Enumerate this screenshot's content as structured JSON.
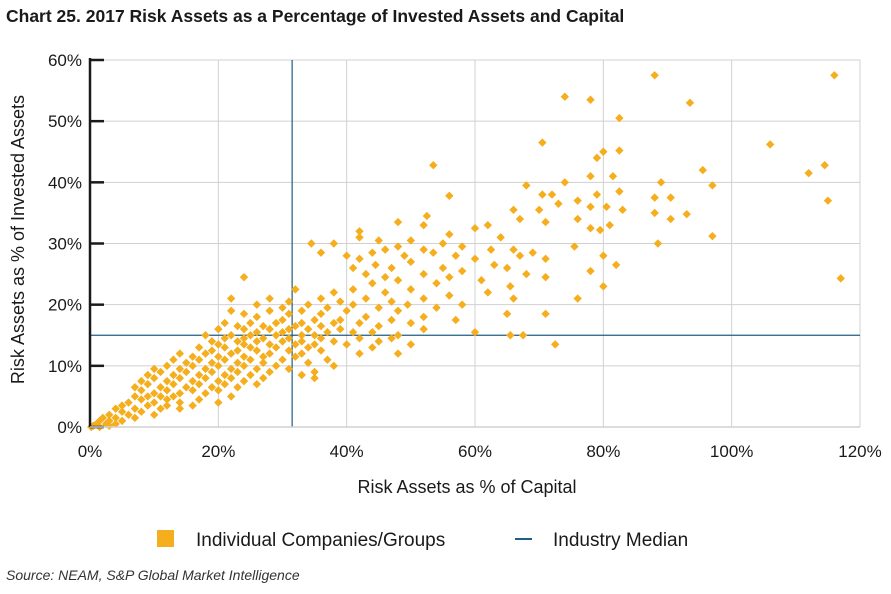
{
  "title": "Chart 25. 2017 Risk Assets as a Percentage of Invested Assets and Capital",
  "source": "Source: NEAM, S&P Global Market Intelligence",
  "colors": {
    "points": "#F5AE1E",
    "median": "#1F5E85",
    "grid": "#d0d0d0",
    "axis": "#1a1a1a"
  },
  "chart_data": {
    "type": "scatter",
    "xlabel": "Risk Assets as % of Capital",
    "ylabel": "Risk Assets as % of Invested Assets",
    "xlim": [
      0,
      120
    ],
    "ylim": [
      0,
      60
    ],
    "x_ticks": [
      "0%",
      "20%",
      "40%",
      "60%",
      "80%",
      "100%",
      "120%"
    ],
    "y_ticks": [
      "0%",
      "10%",
      "20%",
      "30%",
      "40%",
      "50%",
      "60%"
    ],
    "grid": true,
    "legend_position": "bottom",
    "legend": [
      {
        "label": "Individual Companies/Groups",
        "marker": "square"
      },
      {
        "label": "Industry Median",
        "marker": "line"
      }
    ],
    "median": {
      "x": 31.5,
      "y": 15
    },
    "series": [
      {
        "name": "Individual Companies/Groups",
        "points": [
          [
            116,
            57.5
          ],
          [
            88,
            57.5
          ],
          [
            74,
            54
          ],
          [
            78,
            53.5
          ],
          [
            93.5,
            53
          ],
          [
            82.5,
            50.5
          ],
          [
            70.5,
            46.5
          ],
          [
            106,
            46.2
          ],
          [
            80,
            45
          ],
          [
            82.5,
            45.2
          ],
          [
            79,
            44
          ],
          [
            53.5,
            42.8
          ],
          [
            114.5,
            42.8
          ],
          [
            112,
            41.5
          ],
          [
            95.5,
            42
          ],
          [
            81.5,
            41
          ],
          [
            78,
            41
          ],
          [
            74,
            40
          ],
          [
            89,
            40
          ],
          [
            97,
            39.5
          ],
          [
            68,
            39.5
          ],
          [
            70.5,
            38
          ],
          [
            72,
            38
          ],
          [
            76,
            37
          ],
          [
            82.5,
            38.5
          ],
          [
            79,
            38
          ],
          [
            56,
            37.8
          ],
          [
            90.5,
            37.5
          ],
          [
            88,
            37.5
          ],
          [
            115,
            37
          ],
          [
            73,
            36.5
          ],
          [
            78,
            36
          ],
          [
            80.5,
            36
          ],
          [
            83,
            35.5
          ],
          [
            70,
            35.5
          ],
          [
            66,
            35.5
          ],
          [
            88,
            35
          ],
          [
            93,
            34.8
          ],
          [
            76,
            34
          ],
          [
            67,
            34
          ],
          [
            90.5,
            34
          ],
          [
            52.5,
            34.5
          ],
          [
            71,
            33.5
          ],
          [
            81,
            33
          ],
          [
            48,
            33.5
          ],
          [
            52,
            33
          ],
          [
            62,
            33
          ],
          [
            60,
            32.5
          ],
          [
            42,
            32
          ],
          [
            56,
            31.5
          ],
          [
            79.5,
            32.2
          ],
          [
            78,
            32.5
          ],
          [
            64,
            31
          ],
          [
            97,
            31.2
          ],
          [
            42,
            31
          ],
          [
            45,
            30.5
          ],
          [
            50,
            30.5
          ],
          [
            55,
            30
          ],
          [
            88.5,
            30
          ],
          [
            34.5,
            30
          ],
          [
            38,
            30
          ],
          [
            48,
            29.5
          ],
          [
            58,
            29.5
          ],
          [
            66,
            29
          ],
          [
            75.5,
            29.5
          ],
          [
            46,
            29
          ],
          [
            52,
            29
          ],
          [
            62.5,
            29
          ],
          [
            36,
            28.5
          ],
          [
            44,
            28.5
          ],
          [
            53.5,
            28.5
          ],
          [
            69,
            28.5
          ],
          [
            40,
            28
          ],
          [
            49,
            28
          ],
          [
            57,
            28
          ],
          [
            67,
            28
          ],
          [
            80,
            28
          ],
          [
            42,
            27.5
          ],
          [
            60,
            27.5
          ],
          [
            71,
            27.5
          ],
          [
            44.5,
            26.5
          ],
          [
            50,
            27
          ],
          [
            63,
            26.5
          ],
          [
            82,
            26.5
          ],
          [
            41,
            26
          ],
          [
            47,
            26
          ],
          [
            55,
            26
          ],
          [
            65,
            26
          ],
          [
            58,
            25.5
          ],
          [
            43,
            25
          ],
          [
            52,
            25
          ],
          [
            68,
            25
          ],
          [
            78,
            25.5
          ],
          [
            24,
            24.5
          ],
          [
            46,
            24.5
          ],
          [
            56,
            24.5
          ],
          [
            71,
            24.5
          ],
          [
            117,
            24.3
          ],
          [
            61,
            24
          ],
          [
            48,
            24
          ],
          [
            44,
            23.5
          ],
          [
            54,
            23.5
          ],
          [
            65.5,
            23
          ],
          [
            80,
            23
          ],
          [
            32,
            22.5
          ],
          [
            41,
            22.5
          ],
          [
            50,
            22.5
          ],
          [
            62,
            22
          ],
          [
            38,
            22
          ],
          [
            46,
            22
          ],
          [
            56,
            21.5
          ],
          [
            76,
            21
          ],
          [
            22,
            21
          ],
          [
            36,
            21
          ],
          [
            43,
            21
          ],
          [
            52,
            21
          ],
          [
            66,
            21
          ],
          [
            28,
            21
          ],
          [
            31,
            20.5
          ],
          [
            39,
            20.5
          ],
          [
            47,
            20.5
          ],
          [
            58,
            20
          ],
          [
            34,
            20
          ],
          [
            41,
            20
          ],
          [
            49.5,
            20
          ],
          [
            26,
            20
          ],
          [
            30,
            19.5
          ],
          [
            37,
            19.5
          ],
          [
            45,
            19.5
          ],
          [
            54,
            19.5
          ],
          [
            22,
            19
          ],
          [
            28,
            19
          ],
          [
            33,
            19
          ],
          [
            40,
            19
          ],
          [
            48,
            19
          ],
          [
            65,
            18.5
          ],
          [
            71,
            18.5
          ],
          [
            24,
            18.5
          ],
          [
            31,
            18.5
          ],
          [
            36,
            18.5
          ],
          [
            43,
            18
          ],
          [
            52,
            18
          ],
          [
            26,
            18
          ],
          [
            30,
            17.5
          ],
          [
            35,
            17.5
          ],
          [
            39,
            17.5
          ],
          [
            47,
            17.5
          ],
          [
            57,
            17.5
          ],
          [
            21,
            17
          ],
          [
            25,
            17
          ],
          [
            29,
            17
          ],
          [
            33,
            17
          ],
          [
            38,
            17
          ],
          [
            42,
            17
          ],
          [
            50,
            17
          ],
          [
            23,
            16.5
          ],
          [
            27,
            16.5
          ],
          [
            32,
            16.5
          ],
          [
            36,
            16.5
          ],
          [
            45,
            16.5
          ],
          [
            52,
            16
          ],
          [
            20,
            16
          ],
          [
            24,
            16
          ],
          [
            28,
            16
          ],
          [
            31,
            16
          ],
          [
            34,
            16
          ],
          [
            39,
            16
          ],
          [
            44,
            15.5
          ],
          [
            60,
            15.5
          ],
          [
            26,
            15.5
          ],
          [
            30,
            15.5
          ],
          [
            37,
            15.5
          ],
          [
            41,
            15.5
          ],
          [
            22,
            15
          ],
          [
            25,
            15
          ],
          [
            29,
            15
          ],
          [
            33,
            15
          ],
          [
            35,
            15
          ],
          [
            48,
            15
          ],
          [
            65.5,
            15
          ],
          [
            67.5,
            15
          ],
          [
            18,
            15
          ],
          [
            21,
            14.5
          ],
          [
            24,
            14.5
          ],
          [
            27,
            14.5
          ],
          [
            31,
            14.5
          ],
          [
            36,
            14.5
          ],
          [
            42,
            14.5
          ],
          [
            47,
            14.5
          ],
          [
            19,
            14
          ],
          [
            23,
            14
          ],
          [
            26,
            14
          ],
          [
            30,
            14
          ],
          [
            33,
            14
          ],
          [
            38,
            14
          ],
          [
            45,
            14
          ],
          [
            20,
            13.5
          ],
          [
            24,
            13.5
          ],
          [
            28,
            13.5
          ],
          [
            32,
            13.5
          ],
          [
            35,
            13.5
          ],
          [
            40,
            13.5
          ],
          [
            50,
            13.5
          ],
          [
            72.5,
            13.5
          ],
          [
            17,
            13
          ],
          [
            21,
            13
          ],
          [
            25,
            13
          ],
          [
            29,
            13
          ],
          [
            34,
            13
          ],
          [
            44,
            13
          ],
          [
            19,
            12.5
          ],
          [
            23,
            12.5
          ],
          [
            26,
            12.5
          ],
          [
            31,
            12.5
          ],
          [
            36,
            12.5
          ],
          [
            14,
            12
          ],
          [
            18,
            12
          ],
          [
            22,
            12
          ],
          [
            28,
            12
          ],
          [
            33,
            12
          ],
          [
            42,
            12
          ],
          [
            48,
            12
          ],
          [
            16,
            11.5
          ],
          [
            20,
            11.5
          ],
          [
            24,
            11.5
          ],
          [
            27,
            11.5
          ],
          [
            32,
            11.5
          ],
          [
            13,
            11
          ],
          [
            17,
            11
          ],
          [
            21,
            11
          ],
          [
            25,
            11
          ],
          [
            30,
            11
          ],
          [
            37,
            11
          ],
          [
            15,
            10.5
          ],
          [
            19,
            10.5
          ],
          [
            23,
            10.5
          ],
          [
            27,
            10.5
          ],
          [
            34,
            10.5
          ],
          [
            12,
            10
          ],
          [
            16,
            10
          ],
          [
            20,
            10
          ],
          [
            24,
            10
          ],
          [
            29,
            10
          ],
          [
            38,
            10
          ],
          [
            10,
            9.5
          ],
          [
            14,
            9.5
          ],
          [
            18,
            9.5
          ],
          [
            22,
            9.5
          ],
          [
            26,
            9.5
          ],
          [
            31,
            9.5
          ],
          [
            11,
            9
          ],
          [
            15,
            9
          ],
          [
            19,
            9
          ],
          [
            23,
            9
          ],
          [
            28,
            9
          ],
          [
            35,
            9
          ],
          [
            9,
            8.5
          ],
          [
            13,
            8.5
          ],
          [
            17,
            8.5
          ],
          [
            21,
            8.5
          ],
          [
            25,
            8.5
          ],
          [
            33,
            8.5
          ],
          [
            10,
            8
          ],
          [
            14,
            8
          ],
          [
            18,
            8
          ],
          [
            22,
            8
          ],
          [
            27,
            8
          ],
          [
            35,
            8
          ],
          [
            8,
            7.5
          ],
          [
            12,
            7.5
          ],
          [
            16,
            7.5
          ],
          [
            20,
            7.5
          ],
          [
            24,
            7.5
          ],
          [
            9,
            7
          ],
          [
            13,
            7
          ],
          [
            17,
            7
          ],
          [
            21,
            7
          ],
          [
            26,
            7
          ],
          [
            7,
            6.5
          ],
          [
            11,
            6.5
          ],
          [
            15,
            6.5
          ],
          [
            19,
            6.5
          ],
          [
            23,
            6.5
          ],
          [
            8,
            6
          ],
          [
            12,
            6
          ],
          [
            16,
            6
          ],
          [
            20,
            6
          ],
          [
            10,
            5.5
          ],
          [
            14,
            5.5
          ],
          [
            18,
            5.5
          ],
          [
            7,
            5
          ],
          [
            9,
            5
          ],
          [
            11,
            5
          ],
          [
            13,
            5
          ],
          [
            22,
            5
          ],
          [
            8,
            4.5
          ],
          [
            12,
            4.5
          ],
          [
            17,
            4.5
          ],
          [
            6,
            4
          ],
          [
            10,
            4
          ],
          [
            14,
            4
          ],
          [
            20,
            4
          ],
          [
            5,
            3.5
          ],
          [
            9,
            3.5
          ],
          [
            12,
            3.5
          ],
          [
            16,
            3.5
          ],
          [
            4,
            3
          ],
          [
            7,
            3
          ],
          [
            11,
            3
          ],
          [
            14,
            3
          ],
          [
            5,
            2.5
          ],
          [
            8,
            2.5
          ],
          [
            3,
            2
          ],
          [
            6,
            2
          ],
          [
            10,
            2
          ],
          [
            2,
            1.5
          ],
          [
            4,
            1.5
          ],
          [
            7,
            1.5
          ],
          [
            1.5,
            1
          ],
          [
            3,
            1
          ],
          [
            5,
            1
          ],
          [
            1,
            0.5
          ],
          [
            2.5,
            0.5
          ],
          [
            4,
            0.5
          ],
          [
            0.5,
            0.2
          ],
          [
            0.2,
            0
          ],
          [
            1.5,
            0
          ],
          [
            3,
            0.2
          ]
        ]
      }
    ]
  }
}
